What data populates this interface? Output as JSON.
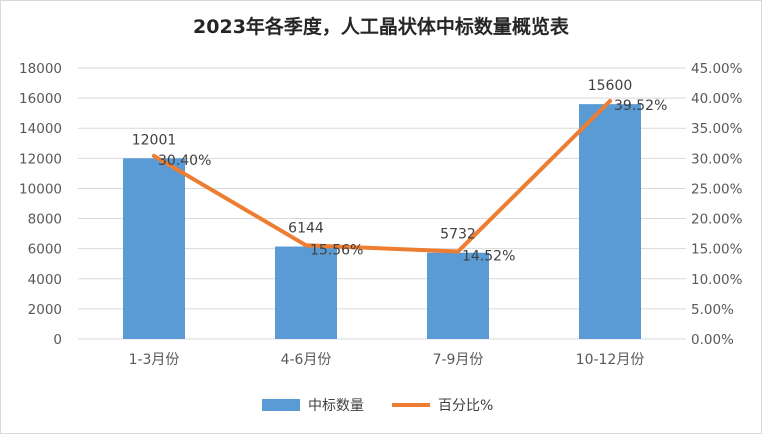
{
  "chart_data": {
    "type": "bar+line",
    "title": "2023年各季度，人工晶状体中标数量概览表",
    "categories": [
      "1-3月份",
      "4-6月份",
      "7-9月份",
      "10-12月份"
    ],
    "series": [
      {
        "name": "中标数量",
        "type": "bar",
        "axis": "left",
        "values": [
          12001,
          6144,
          5732,
          15600
        ],
        "labels": [
          "12001",
          "6144",
          "5732",
          "15600"
        ],
        "color": "#5B9BD5"
      },
      {
        "name": "百分比%",
        "type": "line",
        "axis": "right",
        "values": [
          30.4,
          15.56,
          14.52,
          39.52
        ],
        "labels": [
          "30.40%",
          "15.56%",
          "14.52%",
          "39.52%"
        ],
        "color": "#ED7D31"
      }
    ],
    "y_left": {
      "min": 0,
      "max": 18000,
      "step": 2000,
      "ticks": [
        "0",
        "2000",
        "4000",
        "6000",
        "8000",
        "10000",
        "12000",
        "14000",
        "16000",
        "18000"
      ]
    },
    "y_right": {
      "min": 0,
      "max": 45,
      "step": 5,
      "ticks": [
        "0.00%",
        "5.00%",
        "10.00%",
        "15.00%",
        "20.00%",
        "25.00%",
        "30.00%",
        "35.00%",
        "40.00%",
        "45.00%"
      ]
    },
    "grid": true,
    "legend_position": "bottom"
  }
}
